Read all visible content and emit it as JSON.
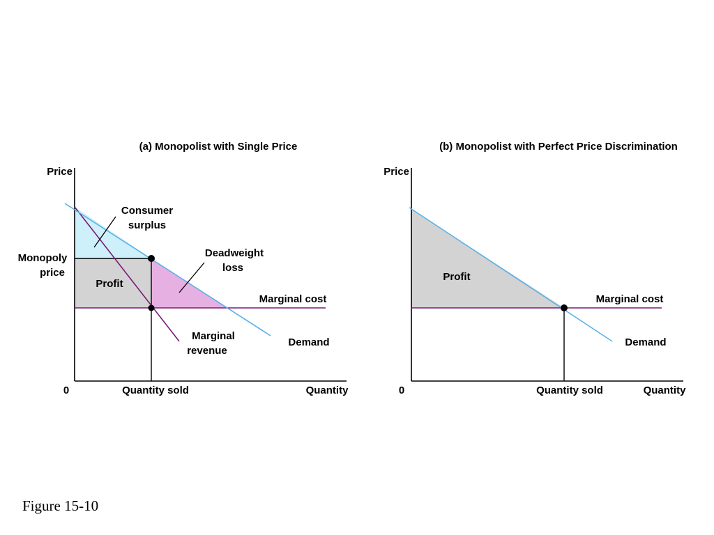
{
  "figure_label": "Figure 15-10",
  "colors": {
    "demand": "#5ab2e8",
    "marginal_cost": "#7a1a78",
    "marginal_revenue": "#7a1a78",
    "consumer_surplus": "#cdf0fa",
    "profit": "#d3d3d3",
    "deadweight_loss": "#e6b0e2",
    "axis": "#000000"
  },
  "panel_a": {
    "title": "(a) Monopolist with Single Price",
    "y_axis_label": "Price",
    "x_axis_label": "Quantity",
    "origin_label": "0",
    "monopoly_price_label": [
      "Monopoly",
      "price"
    ],
    "quantity_sold_label": "Quantity sold",
    "consumer_surplus_label": [
      "Consumer",
      "surplus"
    ],
    "profit_label": "Profit",
    "deadweight_loss_label": [
      "Deadweight",
      "loss"
    ],
    "marginal_cost_label": "Marginal cost",
    "marginal_revenue_label": [
      "Marginal",
      "revenue"
    ],
    "demand_label": "Demand"
  },
  "panel_b": {
    "title": "(b) Monopolist with Perfect Price Discrimination",
    "y_axis_label": "Price",
    "x_axis_label": "Quantity",
    "origin_label": "0",
    "quantity_sold_label": "Quantity sold",
    "profit_label": "Profit",
    "marginal_cost_label": "Marginal cost",
    "demand_label": "Demand"
  }
}
